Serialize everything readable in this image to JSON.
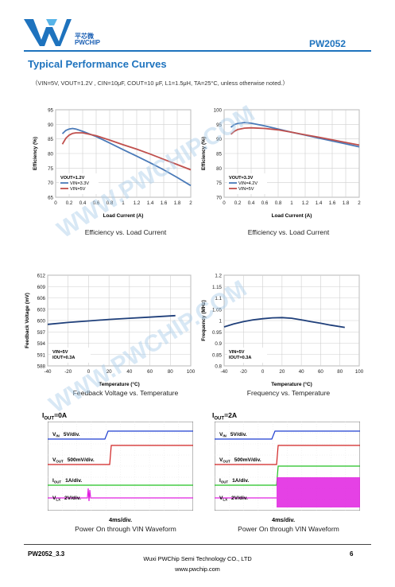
{
  "header": {
    "logo_cn": "平芯微",
    "logo_en": "PWCHIP",
    "part_number": "PW2052",
    "brand_color": "#1e73be"
  },
  "section_title": "Typical Performance Curves",
  "conditions": "（VIN=5V, VOUT=1.2V , CIN=10μF, COUT=10 μF, L1=1.5μH,    TA=25°C, unless otherwise noted.）",
  "captions": {
    "eff1": "Efficiency vs. Load Current",
    "eff2": "Efficiency vs. Load Current",
    "fb": "Feedback Voltage vs. Temperature",
    "freq": "Frequency vs. Temperature",
    "wave1": "Power On through VIN Waveform",
    "wave2": "Power On through VIN Waveform"
  },
  "chart_data": [
    {
      "id": "eff1",
      "type": "line",
      "xlabel": "Load Current (A)",
      "ylabel": "Efficiency  (%)",
      "xlim": [
        0,
        2
      ],
      "ylim": [
        65,
        95
      ],
      "xticks": [
        0,
        0.2,
        0.4,
        0.6,
        0.8,
        1,
        1.2,
        1.4,
        1.6,
        1.8,
        2
      ],
      "xtick_labels": [
        "0",
        "0.2",
        "0.4",
        "0.6",
        "0.8",
        "1",
        "1.2",
        "1.4",
        "1.6",
        "1.8",
        "2"
      ],
      "yticks": [
        65,
        70,
        75,
        80,
        85,
        90,
        95
      ],
      "grid": true,
      "annotation": "VOUT=1.2V",
      "legend": "bottom-left",
      "series": [
        {
          "name": "VIN=3.3V",
          "color": "#4a7ab8",
          "x": [
            0.1,
            0.15,
            0.2,
            0.25,
            0.3,
            0.4,
            0.6,
            0.8,
            1.0,
            1.2,
            1.4,
            1.6,
            1.8,
            2.0
          ],
          "y": [
            86.8,
            87.9,
            88.4,
            88.6,
            88.4,
            87.6,
            85.8,
            83.6,
            81.3,
            79.1,
            76.8,
            74.4,
            71.8,
            69.0
          ]
        },
        {
          "name": "VIN=5V",
          "color": "#c0504d",
          "x": [
            0.1,
            0.15,
            0.2,
            0.25,
            0.3,
            0.4,
            0.6,
            0.8,
            1.0,
            1.2,
            1.4,
            1.6,
            1.8,
            2.0
          ],
          "y": [
            83.2,
            85.2,
            86.3,
            86.9,
            87.1,
            87.1,
            86.1,
            84.6,
            83.0,
            81.5,
            79.8,
            78.0,
            76.2,
            74.4
          ]
        }
      ]
    },
    {
      "id": "eff2",
      "type": "line",
      "xlabel": "Load Current (A)",
      "ylabel": "Efficiency  (%)",
      "xlim": [
        0,
        2
      ],
      "ylim": [
        70,
        100
      ],
      "xticks": [
        0,
        0.2,
        0.4,
        0.6,
        0.8,
        1,
        1.2,
        1.4,
        1.6,
        1.8,
        2
      ],
      "xtick_labels": [
        "0",
        "0.2",
        "0.4",
        "0.6",
        "0.8",
        "1",
        "1.2",
        "1.4",
        "1.6",
        "1.8",
        "2"
      ],
      "yticks": [
        70,
        75,
        80,
        85,
        90,
        95,
        100
      ],
      "grid": true,
      "annotation": "VOUT=3.3V",
      "legend": "bottom-left",
      "series": [
        {
          "name": "VIN=4.2V",
          "color": "#4a7ab8",
          "x": [
            0.1,
            0.15,
            0.2,
            0.3,
            0.4,
            0.6,
            0.8,
            1.0,
            1.2,
            1.4,
            1.6,
            1.8,
            2.0
          ],
          "y": [
            94.0,
            94.9,
            95.3,
            95.6,
            95.4,
            94.5,
            93.4,
            92.3,
            91.3,
            90.3,
            89.3,
            88.3,
            87.3
          ]
        },
        {
          "name": "VIN=5V",
          "color": "#c0504d",
          "x": [
            0.1,
            0.15,
            0.2,
            0.3,
            0.4,
            0.6,
            0.8,
            1.0,
            1.2,
            1.4,
            1.6,
            1.8,
            2.0
          ],
          "y": [
            91.6,
            92.6,
            93.2,
            93.7,
            93.8,
            93.6,
            93.1,
            92.3,
            91.4,
            90.6,
            89.7,
            88.8,
            87.9
          ]
        }
      ]
    },
    {
      "id": "fb",
      "type": "line",
      "xlabel": "Temperature (°C)",
      "ylabel": "Feedback Voltage (mV)",
      "xlim": [
        -40,
        100
      ],
      "ylim": [
        588,
        612
      ],
      "xticks": [
        -40,
        -20,
        0,
        20,
        40,
        60,
        80,
        100
      ],
      "xtick_labels": [
        "-40",
        "-20",
        "0",
        "20",
        "40",
        "60",
        "80",
        "100"
      ],
      "yticks": [
        588,
        591,
        594,
        597,
        600,
        603,
        606,
        609,
        612
      ],
      "grid": true,
      "annotation": "VIN=5V\nIOUT=0.3A",
      "series": [
        {
          "name": "",
          "color": "#1f3f7a",
          "x": [
            -40,
            -20,
            0,
            20,
            40,
            60,
            85
          ],
          "y": [
            599.0,
            599.5,
            599.9,
            600.3,
            600.6,
            600.9,
            601.3
          ]
        }
      ]
    },
    {
      "id": "freq",
      "type": "line",
      "xlabel": "Temperature (°C)",
      "ylabel": "Frequency (MHz)",
      "xlim": [
        -40,
        100
      ],
      "ylim": [
        0.8,
        1.2
      ],
      "xticks": [
        -40,
        -20,
        0,
        20,
        40,
        60,
        80,
        100
      ],
      "xtick_labels": [
        "-40",
        "-20",
        "0",
        "20",
        "40",
        "60",
        "80",
        "100"
      ],
      "yticks": [
        0.8,
        0.85,
        0.9,
        0.95,
        1,
        1.05,
        1.1,
        1.15,
        1.2
      ],
      "ytick_labels": [
        "0.8",
        "0.85",
        "0.9",
        "0.95",
        "1",
        "1.05",
        "1.1",
        "1.15",
        "1.2"
      ],
      "grid": true,
      "annotation": "VIN=5V\nIOUT=0.3A",
      "series": [
        {
          "name": "",
          "color": "#1f3f7a",
          "x": [
            -40,
            -30,
            -20,
            -10,
            0,
            10,
            20,
            30,
            40,
            50,
            60,
            70,
            85
          ],
          "y": [
            0.972,
            0.985,
            0.995,
            1.003,
            1.008,
            1.012,
            1.013,
            1.01,
            1.003,
            0.995,
            0.988,
            0.98,
            0.97
          ]
        }
      ]
    }
  ],
  "waveforms": [
    {
      "id": "wave1",
      "title_main": "I",
      "title_sub": "OUT",
      "title_tail": "=0A",
      "timebase": "4ms/div.",
      "channels": [
        {
          "label": "V",
          "sub": "IN",
          "scale": "5V/div.",
          "color": "#1f3fd0"
        },
        {
          "label": "V",
          "sub": "OUT",
          "scale": "500mV/div.",
          "color": "#d02020"
        },
        {
          "label": "I",
          "sub": "OUT",
          "scale": "1A/div.",
          "color": "#20c020"
        },
        {
          "label": "V",
          "sub": "LX",
          "scale": "2V/div.",
          "color": "#e020e0"
        }
      ]
    },
    {
      "id": "wave2",
      "title_main": "I",
      "title_sub": "OUT",
      "title_tail": "=2A",
      "timebase": "4ms/div.",
      "channels": [
        {
          "label": "V",
          "sub": "IN",
          "scale": "5V/div.",
          "color": "#1f3fd0"
        },
        {
          "label": "V",
          "sub": "OUT",
          "scale": "500mV/div.",
          "color": "#d02020"
        },
        {
          "label": "I",
          "sub": "OUT",
          "scale": "1A/div.",
          "color": "#20c020"
        },
        {
          "label": "V",
          "sub": "LX",
          "scale": "2V/div.",
          "color": "#e020e0"
        }
      ]
    }
  ],
  "watermark": "WWW.PWCHIP.COM",
  "footer": {
    "doc_id": "PW2052_3.3",
    "company": "Wuxi PWChip Semi Technology CO., LTD",
    "url": "www.pwchip.com",
    "page": "6"
  }
}
